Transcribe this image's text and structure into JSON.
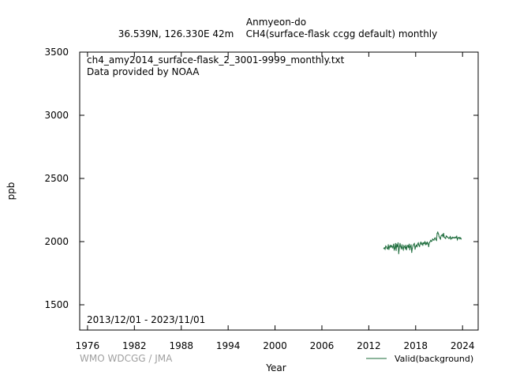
{
  "header": {
    "station": "Anmyeon-do",
    "subtitle": "36.539N, 126.330E 42m    CH4(surface-flask ccgg default) monthly"
  },
  "plot_notes": {
    "filename": "ch4_amy2014_surface-flask_2_3001-9999_monthly.txt",
    "provider": "Data provided by NOAA",
    "date_range": "2013/12/01 - 2023/11/01"
  },
  "credit": "WMO WDCGG / JMA",
  "colors": {
    "series": "#1b6b3a",
    "axis": "#000000",
    "credit": "#a0a0a0"
  },
  "chart_data": {
    "type": "line",
    "xlabel": "Year",
    "ylabel": "ppb",
    "xlim": [
      1975,
      2026
    ],
    "ylim": [
      1300,
      3500
    ],
    "xticks": [
      1976,
      1982,
      1988,
      1994,
      2000,
      2006,
      2012,
      2018,
      2024
    ],
    "yticks": [
      1500,
      2000,
      2500,
      3000,
      3500
    ],
    "grid": false,
    "legend": "bottom-right",
    "series": [
      {
        "name": "Valid(background)",
        "x": [
          2013.92,
          2014.0,
          2014.08,
          2014.17,
          2014.25,
          2014.33,
          2014.42,
          2014.5,
          2014.58,
          2014.67,
          2014.75,
          2014.83,
          2014.92,
          2015.0,
          2015.08,
          2015.17,
          2015.25,
          2015.33,
          2015.42,
          2015.5,
          2015.58,
          2015.67,
          2015.75,
          2015.83,
          2015.92,
          2016.0,
          2016.08,
          2016.17,
          2016.25,
          2016.33,
          2016.42,
          2016.5,
          2016.58,
          2016.67,
          2016.75,
          2016.83,
          2016.92,
          2017.0,
          2017.08,
          2017.17,
          2017.25,
          2017.33,
          2017.42,
          2017.5,
          2017.58,
          2017.67,
          2017.75,
          2017.83,
          2017.92,
          2018.0,
          2018.08,
          2018.17,
          2018.25,
          2018.33,
          2018.42,
          2018.5,
          2018.58,
          2018.67,
          2018.75,
          2018.83,
          2018.92,
          2019.0,
          2019.08,
          2019.17,
          2019.25,
          2019.33,
          2019.42,
          2019.5,
          2019.58,
          2019.67,
          2019.75,
          2019.83,
          2019.92,
          2020.0,
          2020.08,
          2020.17,
          2020.25,
          2020.33,
          2020.42,
          2020.5,
          2020.58,
          2020.67,
          2020.75,
          2020.83,
          2020.92,
          2021.0,
          2021.08,
          2021.17,
          2021.25,
          2021.33,
          2021.42,
          2021.5,
          2021.58,
          2021.67,
          2021.75,
          2021.83,
          2021.92,
          2022.0,
          2022.08,
          2022.17,
          2022.25,
          2022.33,
          2022.42,
          2022.5,
          2022.58,
          2022.67,
          2022.75,
          2022.83,
          2022.92,
          2023.0,
          2023.08,
          2023.17,
          2023.25,
          2023.33,
          2023.42,
          2023.5,
          2023.58,
          2023.67,
          2023.75,
          2023.83
        ],
        "values": [
          1945,
          1952,
          1940,
          1965,
          1958,
          1948,
          1942,
          1975,
          1938,
          1962,
          1970,
          1955,
          1968,
          1960,
          1950,
          1980,
          1935,
          1945,
          1985,
          1930,
          1975,
          1962,
          1990,
          1905,
          1958,
          1985,
          1960,
          1942,
          1975,
          1950,
          1935,
          1968,
          1958,
          1945,
          1972,
          1935,
          1962,
          1970,
          1955,
          1980,
          1935,
          1960,
          1975,
          1915,
          1948,
          1968,
          1978,
          1985,
          1940,
          1962,
          1972,
          1960,
          1980,
          1990,
          1970,
          1962,
          1985,
          1995,
          1978,
          1988,
          1972,
          1990,
          1985,
          1998,
          1975,
          1992,
          1980,
          1995,
          1985,
          1960,
          1990,
          1998,
          2010,
          2002,
          2005,
          2020,
          2015,
          2012,
          2025,
          2030,
          2018,
          2010,
          2065,
          2075,
          2060,
          2040,
          2030,
          2020,
          2045,
          2050,
          2055,
          2040,
          2065,
          2035,
          2030,
          2025,
          2045,
          2040,
          2035,
          2030,
          2025,
          2030,
          2040,
          2020,
          2030,
          2025,
          2035,
          2030,
          2032,
          2028,
          2036,
          2030,
          2042,
          2015,
          2030,
          2028,
          2034,
          2022,
          2030,
          2020
        ]
      }
    ]
  }
}
